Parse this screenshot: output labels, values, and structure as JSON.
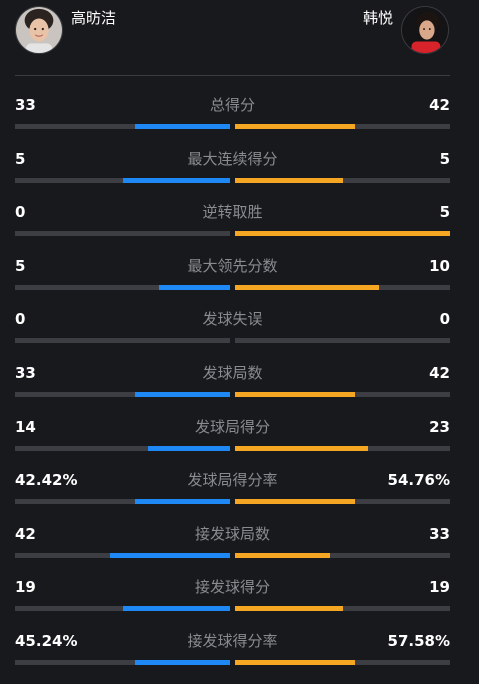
{
  "players": {
    "left": {
      "name": "高昉洁"
    },
    "right": {
      "name": "韩悦"
    }
  },
  "colors": {
    "left_bar": "#1e88f5",
    "right_bar": "#f5a623",
    "track": "#3d3e43",
    "label": "#8a8b90",
    "background": "#18191d"
  },
  "stats": [
    {
      "label": "总得分",
      "left": "33",
      "right": "42",
      "left_fill": 0.44,
      "right_fill": 0.56
    },
    {
      "label": "最大连续得分",
      "left": "5",
      "right": "5",
      "left_fill": 0.5,
      "right_fill": 0.5
    },
    {
      "label": "逆转取胜",
      "left": "0",
      "right": "5",
      "left_fill": 0,
      "right_fill": 1.0
    },
    {
      "label": "最大领先分数",
      "left": "5",
      "right": "10",
      "left_fill": 0.33,
      "right_fill": 0.67
    },
    {
      "label": "发球失误",
      "left": "0",
      "right": "0",
      "left_fill": 0,
      "right_fill": 0
    },
    {
      "label": "发球局数",
      "left": "33",
      "right": "42",
      "left_fill": 0.44,
      "right_fill": 0.56
    },
    {
      "label": "发球局得分",
      "left": "14",
      "right": "23",
      "left_fill": 0.38,
      "right_fill": 0.62
    },
    {
      "label": "发球局得分率",
      "left": "42.42%",
      "right": "54.76%",
      "left_fill": 0.44,
      "right_fill": 0.56
    },
    {
      "label": "接发球局数",
      "left": "42",
      "right": "33",
      "left_fill": 0.56,
      "right_fill": 0.44
    },
    {
      "label": "接发球得分",
      "left": "19",
      "right": "19",
      "left_fill": 0.5,
      "right_fill": 0.5
    },
    {
      "label": "接发球得分率",
      "left": "45.24%",
      "right": "57.58%",
      "left_fill": 0.44,
      "right_fill": 0.56
    }
  ]
}
